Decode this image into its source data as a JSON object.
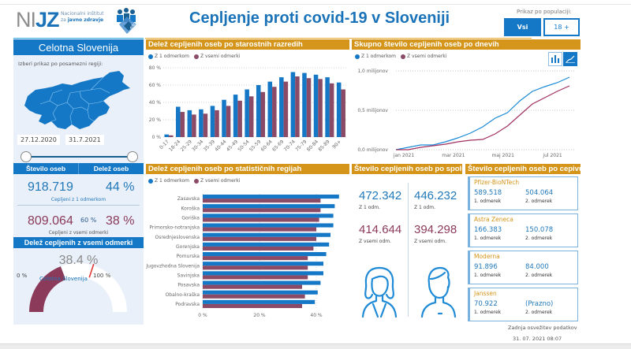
{
  "header": {
    "logo_ni": "NI",
    "logo_jz": "JZ",
    "logo_sub_1": "Nacionalni inštitut",
    "logo_sub_2": "za",
    "logo_sub_3": "javno zdravje",
    "ereco_label": "eRCO",
    "title": "Cepljenje proti covid-19 v Sloveniji",
    "population_label": "Prikaz po populaciji:",
    "population_options": [
      "Vsi",
      "18 +"
    ],
    "population_selected": "Vsi"
  },
  "left_panel": {
    "region_title": "Celotna Slovenija",
    "region_hint": "Izberi prikaz po posamezni regiji:",
    "date_from": "27.12.2020",
    "date_to": "31.7.2021",
    "stats_headers": [
      "Število oseb",
      "Delež oseb"
    ],
    "dose1_count": "918.719",
    "dose1_share": "44 %",
    "dose1_caption": "Cepljeni z 1 odmerkom",
    "full_count": "809.064",
    "full_share": "38 %",
    "full_caption": "Cepljeni z vsemi odmerki",
    "gauge": {
      "title": "Delež cepljenih z vsemi odmerki",
      "value_label": "38.4 %",
      "value": 38.4,
      "target_label": "60 %",
      "target": 60,
      "min_label": "0 %",
      "max_label": "100 %",
      "region": "Celotna Slovenija",
      "colors": {
        "fill": "#8b3a5a",
        "track": "#ffffff",
        "target": "#e0302e"
      }
    }
  },
  "legend": {
    "dose1": "Z 1 odmerkom",
    "full": "Z vsemi odmerki",
    "dose1_color": "#1478c6",
    "full_color": "#8b4a66"
  },
  "chart_data": [
    {
      "type": "bar",
      "title": "Delež cepljenih oseb po starostnih razredih",
      "categories": [
        "0-17",
        "18-24",
        "25-29",
        "30-34",
        "35-39",
        "40-44",
        "45-49",
        "50-54",
        "55-59",
        "60-64",
        "65-69",
        "70-74",
        "75-79",
        "80-84",
        "85-89",
        "90+"
      ],
      "series": [
        {
          "name": "Z 1 odmerkom",
          "values": [
            3,
            35,
            31,
            32,
            36,
            43,
            49,
            55,
            60,
            64,
            69,
            75,
            74,
            72,
            69,
            63
          ]
        },
        {
          "name": "Z vsemi odmerki",
          "values": [
            2,
            29,
            26,
            27,
            31,
            36,
            42,
            47,
            52,
            58,
            64,
            70,
            68,
            67,
            62,
            55
          ]
        }
      ],
      "yticks": [
        "0 %",
        "20 %",
        "40 %",
        "60 %",
        "80 %"
      ],
      "ylim": [
        0,
        80
      ],
      "grid": true,
      "legend": "top-left"
    },
    {
      "type": "line",
      "title": "Skupno število cepljenih oseb po dnevih",
      "xticks": [
        "jan 2021",
        "mar 2021",
        "maj 2021",
        "jul 2021"
      ],
      "yticks": [
        "0,0 milijonov",
        "0,5 milijonov",
        "1,0 milijonov"
      ],
      "ylim": [
        0,
        1.0
      ],
      "x_months": [
        0,
        0.5,
        1,
        1.5,
        2,
        2.5,
        3,
        3.5,
        4,
        4.5,
        5,
        5.5,
        6,
        6.5,
        7
      ],
      "series": [
        {
          "name": "Z 1 odmerkom",
          "values": [
            0.0,
            0.03,
            0.06,
            0.06,
            0.1,
            0.15,
            0.21,
            0.29,
            0.4,
            0.47,
            0.62,
            0.74,
            0.8,
            0.85,
            0.92
          ]
        },
        {
          "name": "Z vsemi odmerki",
          "values": [
            0.0,
            0.0,
            0.03,
            0.05,
            0.07,
            0.1,
            0.12,
            0.13,
            0.2,
            0.3,
            0.44,
            0.58,
            0.66,
            0.74,
            0.81
          ]
        }
      ],
      "grid": true,
      "legend": "top-left"
    },
    {
      "type": "bar",
      "orientation": "horizontal",
      "title": "Delež cepljenih oseb po statističnih regijah",
      "categories": [
        "Zasavska",
        "Koroška",
        "Goriška",
        "Primorsko-notranjska",
        "Osrednjeslovenska",
        "Gorenjska",
        "Pomurska",
        "Jugovzhodna Slovenija",
        "Savinjska",
        "Posavska",
        "Obalno-kraška",
        "Podravska"
      ],
      "series": [
        {
          "name": "Z 1 odmerkom",
          "values": [
            48,
            46.5,
            46,
            46,
            45,
            44.5,
            43.5,
            42.5,
            42.5,
            41.5,
            40.5,
            39.5
          ]
        },
        {
          "name": "Z vsemi odmerki",
          "values": [
            41.5,
            41.5,
            41,
            40,
            40,
            39,
            37,
            37,
            37,
            35,
            36,
            35
          ]
        }
      ],
      "xticks": [
        "0 %",
        "20 %",
        "40 %"
      ],
      "xlim": [
        0,
        50
      ],
      "grid": true,
      "legend": "top-left"
    }
  ],
  "line_panel": {
    "toggle_bar": "bar-chart-icon",
    "toggle_line": "line-chart-icon",
    "toggle_selected": "line"
  },
  "gender": {
    "title": "Število cepljenih oseb po spolu",
    "female": {
      "dose1": "472.342",
      "dose1_cap": "Z 1 odm.",
      "full": "414.644",
      "full_cap": "Z vsemi odm."
    },
    "male": {
      "dose1": "446.232",
      "dose1_cap": "Z 1 odm.",
      "full": "394.298",
      "full_cap": "Z vsemi odm."
    }
  },
  "vaccines": {
    "title": "Število cepljenih oseb po cepivu",
    "items": [
      {
        "name": "Pfizer-BioNTech",
        "d1": "589.518",
        "d1_label": "1. odmerek",
        "d2": "504.064",
        "d2_label": "2. odmerek"
      },
      {
        "name": "Astra Zeneca",
        "d1": "166.383",
        "d1_label": "1. odmerek",
        "d2": "150.078",
        "d2_label": "2. odmerek"
      },
      {
        "name": "Moderna",
        "d1": "91.896",
        "d1_label": "1. odmerek",
        "d2": "84.000",
        "d2_label": "2. odmerek"
      },
      {
        "name": "Janssen",
        "d1": "70.922",
        "d1_label": "1. odmerek",
        "d2": "(Prazno)",
        "d2_label": "2. odmerek"
      }
    ]
  },
  "footer": {
    "update_label": "Zadnja osvežitev podatkov",
    "update_time": "31. 07. 2021 08:07"
  }
}
